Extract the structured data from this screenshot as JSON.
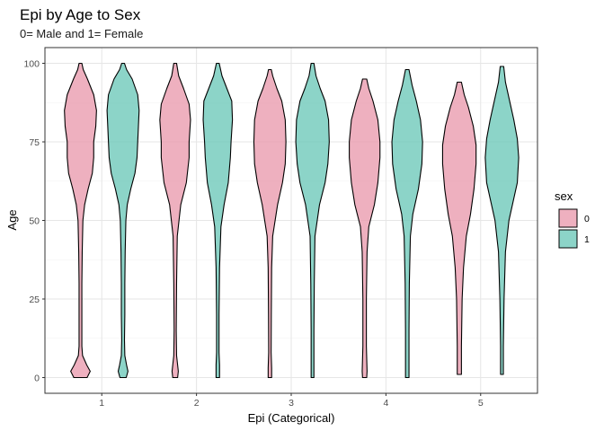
{
  "chart_data": {
    "type": "violin",
    "title": "Epi by Age to Sex",
    "subtitle": "0= Male and 1= Female",
    "xlabel": "Epi (Categorical)",
    "ylabel": "Age",
    "categories": [
      "1",
      "2",
      "3",
      "4",
      "5"
    ],
    "y_ticks": [
      0,
      25,
      50,
      75,
      100
    ],
    "ylim": [
      -5,
      105
    ],
    "grid": true,
    "legend": {
      "title": "sex",
      "position": "right",
      "entries": [
        {
          "label": "0",
          "color": "#e896aa"
        },
        {
          "label": "1",
          "color": "#66c5b5"
        }
      ]
    },
    "series": [
      {
        "name": "0",
        "color": "#e896aa",
        "violins": [
          {
            "category": "1",
            "profile": [
              [
                0,
                0.19
              ],
              [
                2,
                0.28
              ],
              [
                4,
                0.18
              ],
              [
                7,
                0.06
              ],
              [
                10,
                0.04
              ],
              [
                20,
                0.04
              ],
              [
                30,
                0.04
              ],
              [
                40,
                0.05
              ],
              [
                50,
                0.07
              ],
              [
                55,
                0.12
              ],
              [
                60,
                0.22
              ],
              [
                65,
                0.34
              ],
              [
                70,
                0.38
              ],
              [
                75,
                0.38
              ],
              [
                80,
                0.44
              ],
              [
                85,
                0.46
              ],
              [
                90,
                0.38
              ],
              [
                95,
                0.2
              ],
              [
                98,
                0.08
              ],
              [
                100,
                0.04
              ]
            ]
          },
          {
            "category": "2",
            "profile": [
              [
                0,
                0.07
              ],
              [
                2,
                0.09
              ],
              [
                4,
                0.07
              ],
              [
                7,
                0.04
              ],
              [
                15,
                0.03
              ],
              [
                30,
                0.04
              ],
              [
                45,
                0.06
              ],
              [
                55,
                0.16
              ],
              [
                62,
                0.32
              ],
              [
                70,
                0.4
              ],
              [
                75,
                0.4
              ],
              [
                82,
                0.44
              ],
              [
                87,
                0.4
              ],
              [
                92,
                0.24
              ],
              [
                96,
                0.1
              ],
              [
                100,
                0.04
              ]
            ]
          },
          {
            "category": "3",
            "profile": [
              [
                0,
                0.05
              ],
              [
                3,
                0.05
              ],
              [
                8,
                0.035
              ],
              [
                20,
                0.04
              ],
              [
                35,
                0.05
              ],
              [
                45,
                0.08
              ],
              [
                55,
                0.22
              ],
              [
                62,
                0.36
              ],
              [
                68,
                0.44
              ],
              [
                75,
                0.46
              ],
              [
                82,
                0.44
              ],
              [
                88,
                0.34
              ],
              [
                92,
                0.2
              ],
              [
                96,
                0.08
              ],
              [
                98,
                0.04
              ]
            ]
          },
          {
            "category": "4",
            "profile": [
              [
                0,
                0.06
              ],
              [
                2,
                0.07
              ],
              [
                10,
                0.05
              ],
              [
                25,
                0.05
              ],
              [
                40,
                0.07
              ],
              [
                48,
                0.12
              ],
              [
                55,
                0.28
              ],
              [
                62,
                0.38
              ],
              [
                70,
                0.44
              ],
              [
                75,
                0.44
              ],
              [
                82,
                0.38
              ],
              [
                88,
                0.24
              ],
              [
                92,
                0.12
              ],
              [
                95,
                0.06
              ]
            ]
          },
          {
            "category": "5",
            "profile": [
              [
                1,
                0.06
              ],
              [
                10,
                0.06
              ],
              [
                25,
                0.08
              ],
              [
                35,
                0.12
              ],
              [
                45,
                0.2
              ],
              [
                52,
                0.32
              ],
              [
                60,
                0.42
              ],
              [
                68,
                0.48
              ],
              [
                74,
                0.48
              ],
              [
                80,
                0.4
              ],
              [
                86,
                0.26
              ],
              [
                90,
                0.14
              ],
              [
                94,
                0.06
              ]
            ]
          }
        ]
      },
      {
        "name": "1",
        "color": "#66c5b5",
        "violins": [
          {
            "category": "1",
            "profile": [
              [
                0,
                0.09
              ],
              [
                2,
                0.14
              ],
              [
                4,
                0.1
              ],
              [
                7,
                0.05
              ],
              [
                12,
                0.04
              ],
              [
                20,
                0.05
              ],
              [
                30,
                0.05
              ],
              [
                40,
                0.06
              ],
              [
                50,
                0.08
              ],
              [
                55,
                0.12
              ],
              [
                60,
                0.22
              ],
              [
                65,
                0.34
              ],
              [
                70,
                0.4
              ],
              [
                75,
                0.42
              ],
              [
                80,
                0.44
              ],
              [
                85,
                0.46
              ],
              [
                90,
                0.42
              ],
              [
                95,
                0.26
              ],
              [
                98,
                0.1
              ],
              [
                100,
                0.04
              ]
            ]
          },
          {
            "category": "2",
            "profile": [
              [
                0,
                0.05
              ],
              [
                4,
                0.05
              ],
              [
                8,
                0.035
              ],
              [
                20,
                0.035
              ],
              [
                35,
                0.05
              ],
              [
                48,
                0.09
              ],
              [
                55,
                0.18
              ],
              [
                62,
                0.3
              ],
              [
                70,
                0.36
              ],
              [
                75,
                0.38
              ],
              [
                82,
                0.42
              ],
              [
                88,
                0.4
              ],
              [
                92,
                0.26
              ],
              [
                96,
                0.12
              ],
              [
                100,
                0.04
              ]
            ]
          },
          {
            "category": "3",
            "profile": [
              [
                0,
                0.04
              ],
              [
                5,
                0.04
              ],
              [
                15,
                0.04
              ],
              [
                30,
                0.05
              ],
              [
                45,
                0.07
              ],
              [
                55,
                0.2
              ],
              [
                62,
                0.36
              ],
              [
                68,
                0.44
              ],
              [
                75,
                0.48
              ],
              [
                82,
                0.46
              ],
              [
                88,
                0.36
              ],
              [
                92,
                0.22
              ],
              [
                96,
                0.1
              ],
              [
                100,
                0.04
              ]
            ]
          },
          {
            "category": "4",
            "profile": [
              [
                0,
                0.05
              ],
              [
                5,
                0.05
              ],
              [
                15,
                0.05
              ],
              [
                30,
                0.06
              ],
              [
                45,
                0.09
              ],
              [
                52,
                0.16
              ],
              [
                60,
                0.32
              ],
              [
                68,
                0.42
              ],
              [
                75,
                0.44
              ],
              [
                82,
                0.38
              ],
              [
                88,
                0.26
              ],
              [
                93,
                0.14
              ],
              [
                98,
                0.05
              ]
            ]
          },
          {
            "category": "5",
            "profile": [
              [
                1,
                0.04
              ],
              [
                10,
                0.04
              ],
              [
                25,
                0.06
              ],
              [
                40,
                0.1
              ],
              [
                50,
                0.2
              ],
              [
                56,
                0.32
              ],
              [
                62,
                0.44
              ],
              [
                70,
                0.48
              ],
              [
                76,
                0.44
              ],
              [
                82,
                0.34
              ],
              [
                88,
                0.22
              ],
              [
                94,
                0.1
              ],
              [
                99,
                0.05
              ]
            ]
          }
        ]
      }
    ]
  }
}
